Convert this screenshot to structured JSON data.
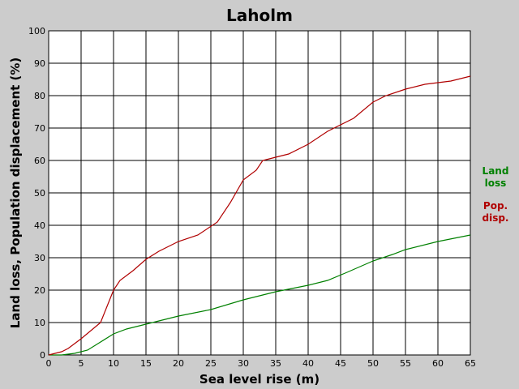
{
  "chart_data": {
    "type": "line",
    "title": "Laholm",
    "xlabel": "Sea level rise (m)",
    "ylabel": "Land loss, Population displacement (%)",
    "xlim": [
      0,
      65
    ],
    "ylim": [
      0,
      100
    ],
    "x_ticks": [
      0,
      5,
      10,
      15,
      20,
      25,
      30,
      35,
      40,
      45,
      50,
      55,
      60,
      65
    ],
    "y_ticks": [
      0,
      10,
      20,
      30,
      40,
      50,
      60,
      70,
      80,
      90,
      100
    ],
    "grid": true,
    "legend_position": "right",
    "series": [
      {
        "name": "Land loss",
        "legend_lines": [
          "Land",
          "loss"
        ],
        "color": "#008000",
        "x": [
          0,
          2,
          4,
          6,
          8,
          10,
          12,
          15,
          20,
          25,
          30,
          35,
          40,
          43,
          46,
          50,
          53,
          55,
          60,
          65
        ],
        "y": [
          0,
          0,
          0.5,
          1.5,
          4,
          6.5,
          8,
          9.5,
          12,
          14,
          17,
          19.5,
          21.5,
          23,
          25.5,
          29,
          31,
          32.5,
          35,
          37
        ]
      },
      {
        "name": "Pop. disp.",
        "legend_lines": [
          "Pop.",
          "disp."
        ],
        "color": "#b00000",
        "x": [
          0,
          2,
          3,
          5,
          8,
          9,
          10,
          11,
          13,
          15,
          17,
          20,
          23,
          26,
          28,
          30,
          32,
          33,
          35,
          37,
          40,
          43,
          47,
          50,
          52,
          55,
          58,
          62,
          65
        ],
        "y": [
          0,
          1,
          2,
          5,
          10,
          15,
          20,
          23,
          26,
          29.5,
          32,
          35,
          37,
          41,
          47,
          54,
          57,
          60,
          61,
          62,
          65,
          69,
          73,
          78,
          80,
          82,
          83.5,
          84.5,
          86
        ]
      }
    ]
  }
}
